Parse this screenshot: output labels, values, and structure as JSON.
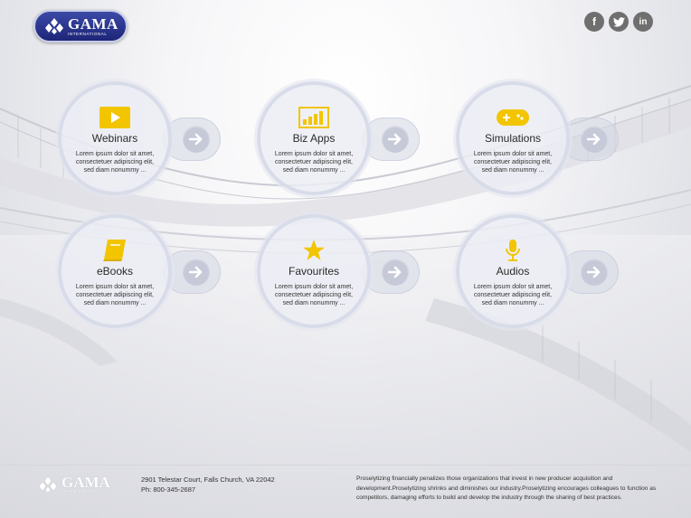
{
  "brand": {
    "name": "GAMA",
    "subtitle": "INTERNATIONAL"
  },
  "social": [
    {
      "icon": "facebook-icon",
      "glyph": "f"
    },
    {
      "icon": "twitter-icon",
      "glyph": "t"
    },
    {
      "icon": "linkedin-icon",
      "glyph": "in"
    }
  ],
  "accent_color": "#f2c500",
  "tiles": [
    {
      "title": "Webinars",
      "icon": "play-video-icon",
      "desc": "Lorem ipsum dolor sit amet, consectetuer adipiscing elit, sed diam nonummy ..."
    },
    {
      "title": "Biz Apps",
      "icon": "bar-chart-icon",
      "desc": "Lorem ipsum dolor sit amet, consectetuer adipiscing elit, sed diam nonummy ..."
    },
    {
      "title": "Simulations",
      "icon": "gamepad-icon",
      "desc": "Lorem ipsum dolor sit amet, consectetuer adipiscing elit, sed diam nonummy ..."
    },
    {
      "title": "eBooks",
      "icon": "book-icon",
      "desc": "Lorem ipsum dolor sit amet, consectetuer adipiscing elit, sed diam nonummy ..."
    },
    {
      "title": "Favourites",
      "icon": "star-icon",
      "desc": "Lorem ipsum dolor sit amet, consectetuer adipiscing elit, sed diam nonummy ..."
    },
    {
      "title": "Audios",
      "icon": "microphone-icon",
      "desc": "Lorem ipsum dolor sit amet, consectetuer adipiscing elit, sed diam nonummy ..."
    }
  ],
  "footer": {
    "address": "2901 Telestar Court, Falls Church, VA 22042",
    "phone": "Ph: 800-345-2687",
    "about": "Proselytizing financially penalizes those organizations that invest in new producer acquisition and development.Proselytizing shrinks and diminishes our industry.Proselytizing encourages colleagues to function as competitors, damaging efforts to build and develop the industry through the sharing of best practices."
  }
}
